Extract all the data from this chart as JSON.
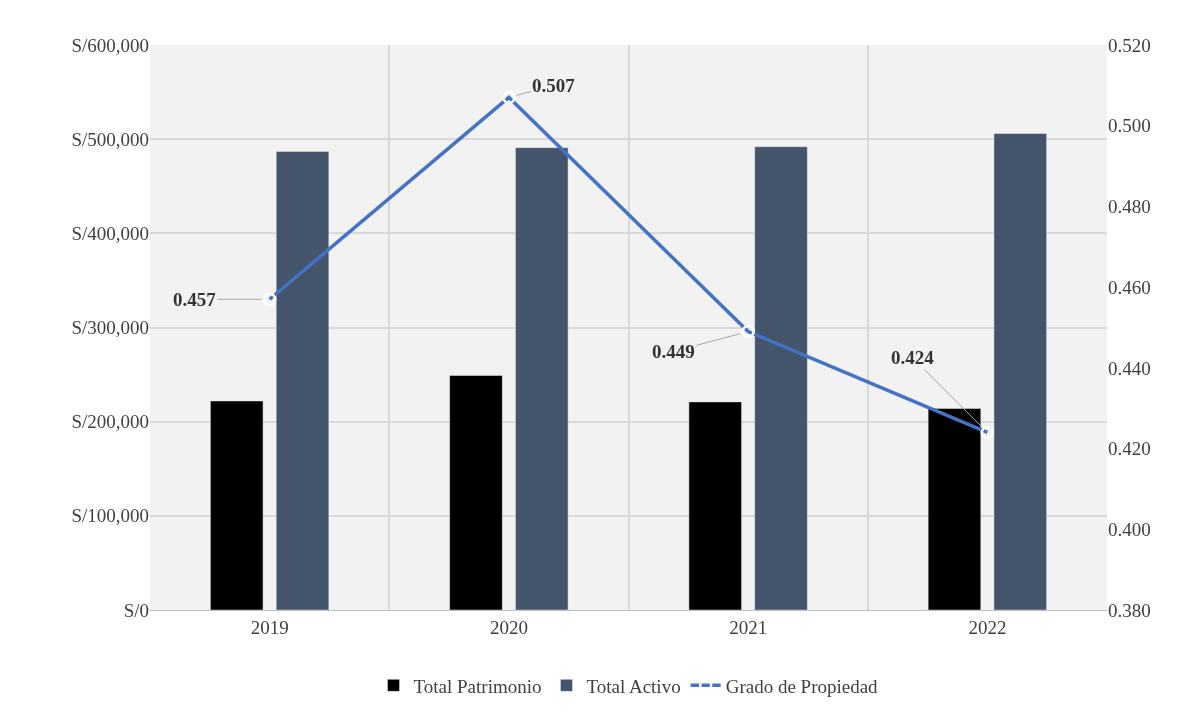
{
  "chart_data": {
    "type": "bar",
    "categories": [
      "2019",
      "2020",
      "2021",
      "2022"
    ],
    "series": [
      {
        "name": "Total Patrimonio",
        "color": "#000000",
        "values": [
          222000,
          249000,
          221000,
          214000
        ]
      },
      {
        "name": "Total Activo",
        "color": "#44546a",
        "values": [
          487000,
          491000,
          492000,
          506000
        ]
      },
      {
        "name": "Grado de Propiedad",
        "type": "line",
        "axis": "y2",
        "color": "#4472c4",
        "values": [
          0.457,
          0.507,
          0.449,
          0.424
        ],
        "value_labels": [
          "0.457",
          "0.507",
          "0.449",
          "0.424"
        ],
        "marker": "circle"
      }
    ],
    "ylim": [
      0,
      600000
    ],
    "yticks": [
      {
        "value": 0,
        "label": "S/0"
      },
      {
        "value": 100000,
        "label": "S/100,000"
      },
      {
        "value": 200000,
        "label": "S/200,000"
      },
      {
        "value": 300000,
        "label": "S/300,000"
      },
      {
        "value": 400000,
        "label": "S/400,000"
      },
      {
        "value": 500000,
        "label": "S/500,000"
      },
      {
        "value": 600000,
        "label": "S/600,000"
      }
    ],
    "y2lim": [
      0.38,
      0.52
    ],
    "y2ticks": [
      {
        "value": 0.38,
        "label": "0.380"
      },
      {
        "value": 0.4,
        "label": "0.400"
      },
      {
        "value": 0.42,
        "label": "0.420"
      },
      {
        "value": 0.44,
        "label": "0.440"
      },
      {
        "value": 0.46,
        "label": "0.460"
      },
      {
        "value": 0.48,
        "label": "0.480"
      },
      {
        "value": 0.5,
        "label": "0.500"
      },
      {
        "value": 0.52,
        "label": "0.520"
      }
    ],
    "grid": true,
    "legend": "bottom"
  }
}
